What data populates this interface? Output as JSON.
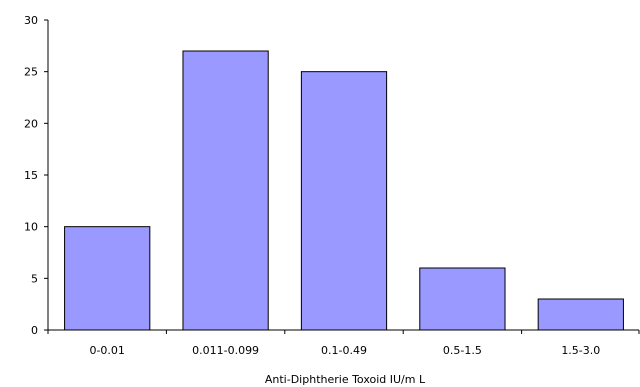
{
  "chart_data": {
    "type": "bar",
    "title": "",
    "xlabel": "Anti-Diphtherie Toxoid IU/m L",
    "ylabel": "",
    "categories": [
      "0-0.01",
      "0.011-0.099",
      "0.1-0.49",
      "0.5-1.5",
      "1.5-3.0"
    ],
    "values": [
      10,
      27,
      25,
      6,
      3
    ],
    "ylim": [
      0,
      30
    ],
    "yticks": [
      "0",
      "5",
      "10",
      "15",
      "20",
      "25",
      "30"
    ],
    "grid": false,
    "legend": "none",
    "colors": {
      "bar_fill": "#9999ff",
      "bar_stroke": "#000000"
    }
  }
}
